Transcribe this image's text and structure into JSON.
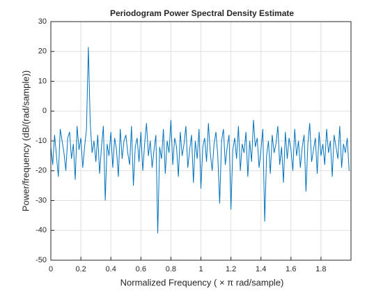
{
  "chart_data": {
    "type": "line",
    "title": "Periodogram Power Spectral Density Estimate",
    "xlabel": "Normalized  Frequency    ( × π  rad/sample)",
    "ylabel": "Power/frequency (dB/(rad/sample))",
    "color": "#0072bd",
    "grid": true,
    "xlim": [
      0,
      2
    ],
    "ylim": [
      -50,
      30
    ],
    "xticks": [
      0,
      0.2,
      0.4,
      0.6,
      0.8,
      1,
      1.2,
      1.4,
      1.6,
      1.8
    ],
    "yticks": [
      -50,
      -40,
      -30,
      -20,
      -10,
      0,
      10,
      20,
      30
    ],
    "x": [
      0,
      0.0125,
      0.025,
      0.0375,
      0.05,
      0.0625,
      0.075,
      0.0875,
      0.1,
      0.1125,
      0.125,
      0.1375,
      0.15,
      0.1625,
      0.175,
      0.1875,
      0.2,
      0.2125,
      0.225,
      0.2375,
      0.25,
      0.2625,
      0.275,
      0.2875,
      0.3,
      0.3125,
      0.325,
      0.3375,
      0.35,
      0.3625,
      0.375,
      0.3875,
      0.4,
      0.4125,
      0.425,
      0.4375,
      0.45,
      0.4625,
      0.475,
      0.4875,
      0.5,
      0.5125,
      0.525,
      0.5375,
      0.55,
      0.5625,
      0.575,
      0.5875,
      0.6,
      0.6125,
      0.625,
      0.6375,
      0.65,
      0.6625,
      0.675,
      0.6875,
      0.7,
      0.7125,
      0.725,
      0.7375,
      0.75,
      0.7625,
      0.775,
      0.7875,
      0.8,
      0.8125,
      0.825,
      0.8375,
      0.85,
      0.8625,
      0.875,
      0.8875,
      0.9,
      0.9125,
      0.925,
      0.9375,
      0.95,
      0.9625,
      0.975,
      0.9875,
      1,
      1.0125,
      1.025,
      1.0375,
      1.05,
      1.0625,
      1.075,
      1.0875,
      1.1,
      1.1125,
      1.125,
      1.1375,
      1.15,
      1.1625,
      1.175,
      1.1875,
      1.2,
      1.2125,
      1.225,
      1.2375,
      1.25,
      1.2625,
      1.275,
      1.2875,
      1.3,
      1.3125,
      1.325,
      1.3375,
      1.35,
      1.3625,
      1.375,
      1.3875,
      1.4,
      1.4125,
      1.425,
      1.4375,
      1.45,
      1.4625,
      1.475,
      1.4875,
      1.5,
      1.5125,
      1.525,
      1.5375,
      1.55,
      1.5625,
      1.575,
      1.5875,
      1.6,
      1.6125,
      1.625,
      1.6375,
      1.65,
      1.6625,
      1.675,
      1.6875,
      1.7,
      1.7125,
      1.725,
      1.7375,
      1.75,
      1.7625,
      1.775,
      1.7875,
      1.8,
      1.8125,
      1.825,
      1.8375,
      1.85,
      1.8625,
      1.875,
      1.8875,
      1.9,
      1.9125,
      1.925,
      1.9375,
      1.95,
      1.9625,
      1.975,
      1.9875
    ],
    "values": [
      -12,
      -18,
      -8,
      -15,
      -22,
      -6,
      -10,
      -14,
      -20,
      -9,
      -7,
      -16,
      -11,
      -23,
      -5,
      -13,
      -9,
      -19,
      -12,
      -6,
      21.5,
      -4,
      -14,
      -10,
      -17,
      -8,
      -21,
      -12,
      -5,
      -30,
      -11,
      -15,
      -7,
      -19,
      -9,
      -13,
      -22,
      -6,
      -16,
      -10,
      -8,
      -14,
      -18,
      -5,
      -25,
      -12,
      -9,
      -17,
      -7,
      -20,
      -11,
      -4,
      -15,
      -10,
      -19,
      -13,
      -8,
      -41,
      -12,
      -16,
      -6,
      -21,
      -10,
      -14,
      -3,
      -18,
      -9,
      -12,
      -22,
      -7,
      -15,
      -11,
      -5,
      -19,
      -13,
      -8,
      -24,
      -10,
      -16,
      -6,
      -26,
      -12,
      -9,
      -17,
      -4,
      -14,
      -20,
      -11,
      -7,
      -15,
      -31,
      -10,
      -6,
      -18,
      -12,
      -8,
      -33,
      -13,
      -9,
      -16,
      -5,
      -20,
      -11,
      -14,
      -7,
      -22,
      -10,
      -17,
      -3,
      -12,
      -9,
      -19,
      -13,
      -6,
      -37,
      -15,
      -10,
      -21,
      -8,
      -14,
      -11,
      -5,
      -18,
      -12,
      -24,
      -7,
      -16,
      -9,
      -13,
      -20,
      -6,
      -15,
      -10,
      -19,
      -12,
      -8,
      -27,
      -11,
      -4,
      -17,
      -13,
      -9,
      -21,
      -7,
      -15,
      -11,
      -18,
      -6,
      -14,
      -10,
      -22,
      -8,
      -12,
      -16,
      -5,
      -19,
      -11,
      -14,
      -9,
      -20
    ]
  }
}
